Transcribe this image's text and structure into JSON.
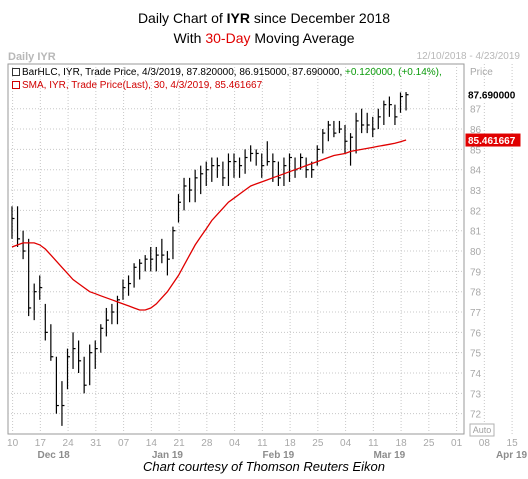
{
  "title": {
    "line1_prefix": "Daily Chart of ",
    "symbol": "IYR",
    "line1_suffix": " since December 2018",
    "line2_prefix": "With ",
    "highlight": "30-Day",
    "line2_suffix": " Moving Average"
  },
  "header": {
    "ticker_label": "Daily IYR",
    "date_range": "12/10/2018 - 4/23/2019"
  },
  "legend": {
    "bars_label": "BarHLC, IYR, Trade Price, 4/3/2019, 87.820000, 86.915000, 87.690000, ",
    "bars_change": "+0.120000, (+0.14%),",
    "sma_label": "SMA, IYR, Trade Price(Last), 30, 4/3/2019, 85.461667"
  },
  "caption": "Chart courtesy of Thomson Reuters Eikon",
  "colors": {
    "bars": "#000000",
    "sma": "#e00000",
    "grid": "#c8c8c8",
    "highlight": "#e00000",
    "change": "#0a9a0a"
  },
  "chart_data": {
    "type": "line",
    "series": [
      {
        "kind": "hlc-bars",
        "values": [
          {
            "h": 82.2,
            "l": 80.6,
            "c": 81.6
          },
          {
            "h": 82.2,
            "l": 80.2,
            "c": 80.6
          },
          {
            "h": 81.0,
            "l": 79.6,
            "c": 80.0
          },
          {
            "h": 80.6,
            "l": 76.8,
            "c": 77.2
          },
          {
            "h": 78.4,
            "l": 76.6,
            "c": 78.0
          },
          {
            "h": 78.8,
            "l": 77.6,
            "c": 78.2
          },
          {
            "h": 77.4,
            "l": 75.6,
            "c": 76.0
          },
          {
            "h": 76.4,
            "l": 74.6,
            "c": 74.8
          },
          {
            "h": 74.8,
            "l": 72.0,
            "c": 72.4
          },
          {
            "h": 73.6,
            "l": 71.4,
            "c": 72.4
          },
          {
            "h": 75.2,
            "l": 73.2,
            "c": 74.8
          },
          {
            "h": 76.0,
            "l": 74.2,
            "c": 75.2
          },
          {
            "h": 75.6,
            "l": 74.0,
            "c": 74.6
          },
          {
            "h": 74.8,
            "l": 73.0,
            "c": 73.4
          },
          {
            "h": 75.4,
            "l": 73.4,
            "c": 75.0
          },
          {
            "h": 75.6,
            "l": 74.2,
            "c": 75.2
          },
          {
            "h": 76.4,
            "l": 75.0,
            "c": 76.2
          },
          {
            "h": 77.2,
            "l": 75.8,
            "c": 76.6
          },
          {
            "h": 77.4,
            "l": 76.4,
            "c": 77.0
          },
          {
            "h": 77.8,
            "l": 76.4,
            "c": 77.6
          },
          {
            "h": 78.6,
            "l": 77.6,
            "c": 78.2
          },
          {
            "h": 78.8,
            "l": 77.8,
            "c": 78.4
          },
          {
            "h": 79.4,
            "l": 78.2,
            "c": 79.2
          },
          {
            "h": 79.6,
            "l": 78.6,
            "c": 79.4
          },
          {
            "h": 79.8,
            "l": 79.0,
            "c": 79.6
          },
          {
            "h": 80.2,
            "l": 79.0,
            "c": 79.6
          },
          {
            "h": 80.2,
            "l": 79.0,
            "c": 79.8
          },
          {
            "h": 80.6,
            "l": 79.4,
            "c": 79.8
          },
          {
            "h": 80.0,
            "l": 78.8,
            "c": 79.6
          },
          {
            "h": 81.2,
            "l": 79.6,
            "c": 81.0
          },
          {
            "h": 82.8,
            "l": 81.4,
            "c": 82.4
          },
          {
            "h": 83.6,
            "l": 82.0,
            "c": 83.2
          },
          {
            "h": 83.6,
            "l": 82.4,
            "c": 83.0
          },
          {
            "h": 84.0,
            "l": 82.4,
            "c": 83.6
          },
          {
            "h": 84.2,
            "l": 82.8,
            "c": 83.8
          },
          {
            "h": 84.4,
            "l": 83.2,
            "c": 84.0
          },
          {
            "h": 84.6,
            "l": 83.4,
            "c": 84.2
          },
          {
            "h": 84.6,
            "l": 83.6,
            "c": 84.2
          },
          {
            "h": 84.4,
            "l": 83.2,
            "c": 83.6
          },
          {
            "h": 84.8,
            "l": 83.2,
            "c": 84.4
          },
          {
            "h": 84.8,
            "l": 83.6,
            "c": 84.4
          },
          {
            "h": 84.6,
            "l": 83.6,
            "c": 84.2
          },
          {
            "h": 85.0,
            "l": 83.8,
            "c": 84.6
          },
          {
            "h": 85.2,
            "l": 84.4,
            "c": 84.8
          },
          {
            "h": 85.0,
            "l": 84.2,
            "c": 84.8
          },
          {
            "h": 84.8,
            "l": 83.6,
            "c": 84.2
          },
          {
            "h": 85.4,
            "l": 84.2,
            "c": 84.4
          },
          {
            "h": 84.8,
            "l": 83.4,
            "c": 84.4
          },
          {
            "h": 84.4,
            "l": 83.2,
            "c": 83.6
          },
          {
            "h": 84.6,
            "l": 83.2,
            "c": 84.2
          },
          {
            "h": 84.8,
            "l": 83.4,
            "c": 84.6
          },
          {
            "h": 84.6,
            "l": 83.6,
            "c": 84.0
          },
          {
            "h": 84.8,
            "l": 84.0,
            "c": 84.6
          },
          {
            "h": 84.6,
            "l": 83.6,
            "c": 84.0
          },
          {
            "h": 84.4,
            "l": 83.6,
            "c": 84.0
          },
          {
            "h": 85.2,
            "l": 84.2,
            "c": 85.0
          },
          {
            "h": 86.0,
            "l": 84.8,
            "c": 85.8
          },
          {
            "h": 86.4,
            "l": 85.4,
            "c": 86.2
          },
          {
            "h": 86.4,
            "l": 85.6,
            "c": 85.8
          },
          {
            "h": 86.4,
            "l": 85.8,
            "c": 86.0
          },
          {
            "h": 86.2,
            "l": 84.8,
            "c": 85.4
          },
          {
            "h": 85.8,
            "l": 84.2,
            "c": 85.6
          },
          {
            "h": 86.8,
            "l": 84.8,
            "c": 86.4
          },
          {
            "h": 87.0,
            "l": 85.8,
            "c": 86.2
          },
          {
            "h": 86.8,
            "l": 85.8,
            "c": 86.2
          },
          {
            "h": 86.6,
            "l": 85.6,
            "c": 86.0
          },
          {
            "h": 87.0,
            "l": 86.0,
            "c": 86.6
          },
          {
            "h": 87.4,
            "l": 86.2,
            "c": 87.2
          },
          {
            "h": 87.6,
            "l": 86.6,
            "c": 87.2
          },
          {
            "h": 87.2,
            "l": 86.2,
            "c": 86.6
          },
          {
            "h": 87.8,
            "l": 86.8,
            "c": 87.6
          },
          {
            "h": 87.82,
            "l": 86.915,
            "c": 87.69
          }
        ]
      },
      {
        "kind": "sma",
        "values": [
          80.2,
          80.3,
          80.4,
          80.4,
          80.4,
          80.3,
          80.1,
          79.8,
          79.5,
          79.2,
          78.9,
          78.6,
          78.4,
          78.2,
          78.0,
          77.9,
          77.8,
          77.7,
          77.6,
          77.5,
          77.4,
          77.3,
          77.2,
          77.1,
          77.1,
          77.2,
          77.4,
          77.7,
          78.0,
          78.4,
          78.8,
          79.3,
          79.8,
          80.3,
          80.7,
          81.1,
          81.5,
          81.8,
          82.1,
          82.4,
          82.6,
          82.8,
          83.0,
          83.2,
          83.3,
          83.4,
          83.5,
          83.6,
          83.7,
          83.8,
          83.9,
          84.0,
          84.1,
          84.2,
          84.3,
          84.4,
          84.5,
          84.6,
          84.7,
          84.75,
          84.8,
          84.9,
          84.95,
          85.0,
          85.05,
          85.1,
          85.15,
          85.2,
          85.25,
          85.3,
          85.38,
          85.46
        ]
      }
    ],
    "y_ticks": [
      72,
      73,
      74,
      75,
      76,
      77,
      78,
      79,
      80,
      81,
      82,
      83,
      84,
      85,
      86,
      87
    ],
    "ylim": [
      71,
      89.2
    ],
    "ylabel": "Price",
    "y_unit": "USD",
    "last_price_label": "87.690000",
    "sma_price_label": "85.461667",
    "x_tick_labels": [
      "10",
      "17",
      "24",
      "31",
      "07",
      "14",
      "21",
      "28",
      "04",
      "11",
      "18",
      "25",
      "04",
      "11",
      "18",
      "25",
      "01",
      "08",
      "15",
      "22"
    ],
    "x_month_labels": [
      "Dec 18",
      "Jan 19",
      "Feb 19",
      "Mar 19",
      "Apr 19"
    ],
    "auto_label": "Auto",
    "grid": true
  }
}
